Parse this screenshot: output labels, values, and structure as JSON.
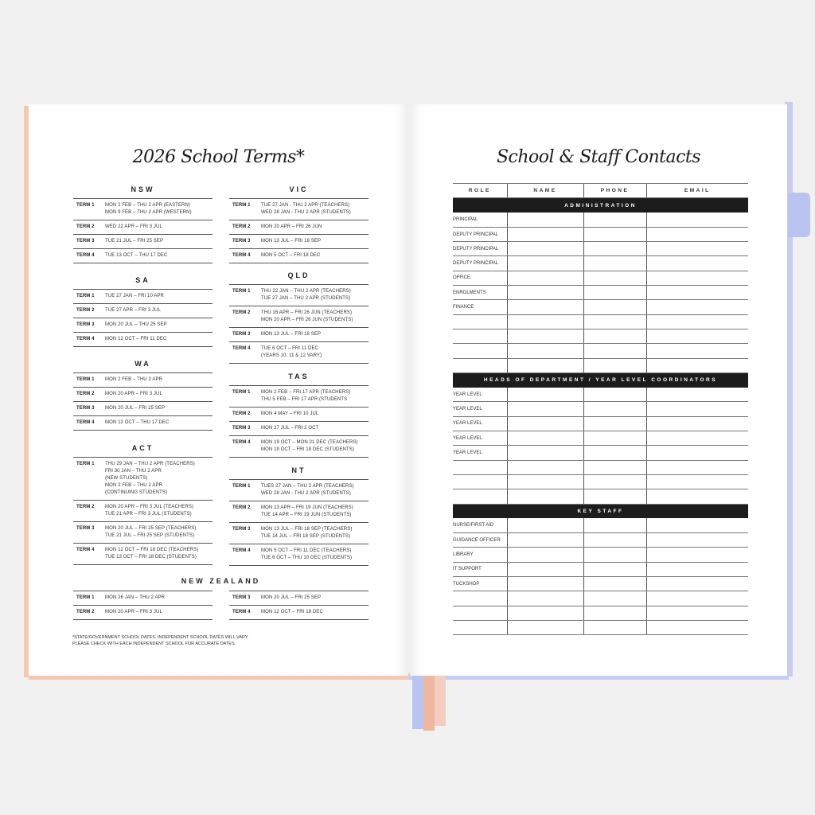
{
  "colors": {
    "background": "#f1f1f1",
    "cover_peach": "#f4c9b3",
    "cover_lavender": "#c8ccf0",
    "ribbon_blue": "#b9c4f0",
    "ribbon_peach": "#eeb79f",
    "band": "#1c1c1c"
  },
  "left_page": {
    "title": "2026 School Terms*",
    "left_column": [
      {
        "state": "NSW",
        "terms": [
          [
            "TERM 1",
            "MON 2 FEB – THU 2 APR (EASTERN)\nMON 9 FEB – THU 2 APR (WESTERN)"
          ],
          [
            "TERM 2",
            "WED 22 APR – FRI 3 JUL"
          ],
          [
            "TERM 3",
            "TUE 21 JUL – FRI 25 SEP"
          ],
          [
            "TERM 4",
            "TUE 13 OCT – THU 17 DEC"
          ]
        ]
      },
      {
        "state": "SA",
        "terms": [
          [
            "TERM 1",
            "TUE 27 JAN – FRI 10 APR"
          ],
          [
            "TERM 2",
            "TUE 27 APR – FRI 3 JUL"
          ],
          [
            "TERM 3",
            "MON 20 JUL – THU 25 SEP"
          ],
          [
            "TERM 4",
            "MON 12 OCT – FRI 11 DEC"
          ]
        ]
      },
      {
        "state": "WA",
        "terms": [
          [
            "TERM 1",
            "MON 2 FEB – THU 2 APR"
          ],
          [
            "TERM 2",
            "MON 20 APR – FRI 3 JUL"
          ],
          [
            "TERM 3",
            "MON 20 JUL – FRI 25 SEP"
          ],
          [
            "TERM 4",
            "MON 12 OCT – THU 17 DEC"
          ]
        ]
      },
      {
        "state": "ACT",
        "terms": [
          [
            "TERM 1",
            "THU 29 JAN – THU 2 APR (TEACHERS)\nFRI 30 JAN – THU 2 APR\n(NEW STUDENTS)\nMON 2 FEB – THU 2 APR\n(CONTINUING STUDENTS)"
          ],
          [
            "TERM 2",
            "MON 20 APR – FRI 3 JUL (TEACHERS)\nTUE 21 APR – FRI 3 JUL (STUDENTS)"
          ],
          [
            "TERM 3",
            "MON 20 JUL – FRI 25 SEP (TEACHERS)\nTUE 21 JUL – FRI 25 SEP (STUDENTS)"
          ],
          [
            "TERM 4",
            "MON 12 OCT – FRI 18 DEC (TEACHERS)\nTUE 13 OCT – FRI 18 DEC (STUDENTS)"
          ]
        ]
      }
    ],
    "right_column": [
      {
        "state": "VIC",
        "terms": [
          [
            "TERM 1",
            "TUE 27 JAN - THU 2 APR (TEACHERS)\nWED 28 JAN - THU 2 APR (STUDENTS)"
          ],
          [
            "TERM 2",
            "MON 20 APR – FRI 26 JUN"
          ],
          [
            "TERM 3",
            "MON 13 JUL – FRI 18 SEP"
          ],
          [
            "TERM 4",
            "MON 5 OCT – FRI 18 DEC"
          ]
        ]
      },
      {
        "state": "QLD",
        "terms": [
          [
            "TERM 1",
            "THU 22 JAN – THU 2 APR (TEACHERS)\nTUE 27 JAN – THU 2 APR (STUDENTS)"
          ],
          [
            "TERM 2",
            "THU 16 APR – FRI 26 JUN (TEACHERS)\nMON 20 APR – FRI 26 JUN (STUDENTS)"
          ],
          [
            "TERM 3",
            "MON 13 JUL – FRI 18 SEP"
          ],
          [
            "TERM 4",
            "TUE 6 OCT – FRI 11 DEC\n(YEARS 10, 11 & 12 VARY)"
          ]
        ]
      },
      {
        "state": "TAS",
        "terms": [
          [
            "TERM 1",
            "MON 2 FEB – FRI 17 APR (TEACHERS)\nTHU 5 FEB – FRI 17 APR (STUDENTS"
          ],
          [
            "TERM 2",
            "MON 4 MAY – FRI 10 JUL"
          ],
          [
            "TERM 3",
            "MON 27 JUL – FRI 2 OCT"
          ],
          [
            "TERM 4",
            "MON 19 OCT – MON 21 DEC (TEACHERS)\nMON 19 OCT – FRI 18 DEC (STUDENTS)"
          ]
        ]
      },
      {
        "state": "NT",
        "terms": [
          [
            "TERM 1",
            "TUES 27 JAN – THU 2 APR (TEACHERS)\nWED 28 JAN - THU 2 APR (STUDENTS)"
          ],
          [
            "TERM 2",
            "MON 13 APR – FRI 19 JUN (TEACHERS)\nTUE 14 APR – FRI 19 JUN (STUDENTS)"
          ],
          [
            "TERM 3",
            "MON 13 JUL – FRI 18 SEP (TEACHERS)\nTUE 14 JUL – FRI 18 SEP (STUDENTS)"
          ],
          [
            "TERM 4",
            "MON 5 OCT – FRI 11 DEC (TEACHERS)\nTUE 6 OCT – THU 10 DEC (STUDENTS)"
          ]
        ]
      }
    ],
    "nz": {
      "state": "NEW ZEALAND",
      "left": [
        [
          "TERM 1",
          "MON 26 JAN – THU 2 APR"
        ],
        [
          "TERM 2",
          "MON 20 APR – FRI 3 JUL"
        ]
      ],
      "right": [
        [
          "TERM 3",
          "MON 20 JUL – FRI 25 SEP"
        ],
        [
          "TERM 4",
          "MON 12 OCT – FRI 18 DEC"
        ]
      ]
    },
    "footnote": "*STATE/GOVERNMENT SCHOOL DATES. INDEPENDENT SCHOOL DATES WILL VARY.\nPLEASE CHECK WITH EACH INDEPENDENT SCHOOL FOR ACCURATE DATES."
  },
  "right_page": {
    "title": "School & Staff Contacts",
    "columns": [
      "ROLE",
      "NAME",
      "PHONE",
      "EMAIL"
    ],
    "sections": [
      {
        "heading": "ADMINISTRATION",
        "roles": [
          "PRINCIPAL",
          "DEPUTY PRINCIPAL",
          "DEPUTY PRINCIPAL",
          "DEPUTY PRINCIPAL",
          "OFFICE",
          "ENROLMENTS",
          "FINANCE",
          "",
          "",
          "",
          ""
        ]
      },
      {
        "heading": "HEADS OF DEPARTMENT / YEAR LEVEL COORDINATORS",
        "roles": [
          "YEAR LEVEL",
          "YEAR LEVEL",
          "YEAR LEVEL",
          "YEAR LEVEL",
          "YEAR LEVEL",
          "",
          "",
          ""
        ]
      },
      {
        "heading": "KEY STAFF",
        "roles": [
          "NURSE/FIRST AID",
          "GUIDANCE OFFICER",
          "LIBRARY",
          "IT SUPPORT",
          "TUCKSHOP",
          "",
          "",
          ""
        ]
      }
    ]
  }
}
